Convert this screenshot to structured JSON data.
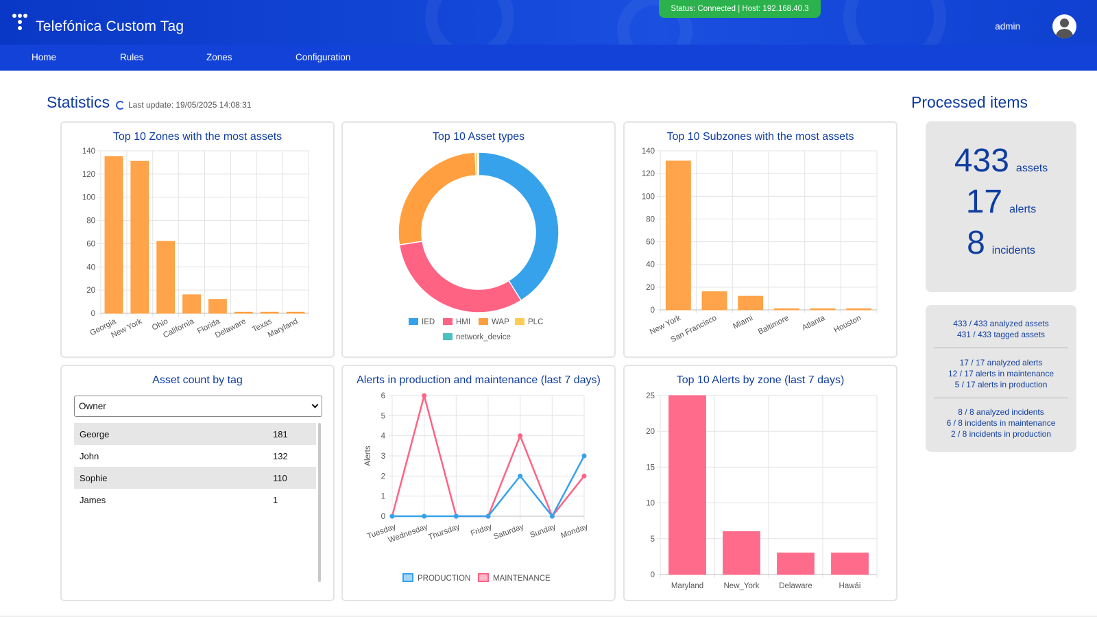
{
  "header": {
    "app_title": "Telefónica Custom Tag",
    "status": "Status: Connected | Host: 192.168.40.3",
    "user": "admin",
    "brand_color": "#1242d8",
    "status_color": "#2bb24c"
  },
  "nav": {
    "items": [
      "Home",
      "Rules",
      "Zones",
      "Configuration"
    ]
  },
  "statistics": {
    "title": "Statistics",
    "last_update": "Last update: 19/05/2025 14:08:31"
  },
  "processed": {
    "title": "Processed items",
    "assets_num": "433",
    "assets_label": "assets",
    "alerts_num": "17",
    "alerts_label": "alerts",
    "incidents_num": "8",
    "incidents_label": "incidents",
    "assets_detail": [
      "433 / 433 analyzed assets",
      "431 / 433 tagged assets"
    ],
    "alerts_detail": [
      "17 / 17 analyzed alerts",
      "12 / 17 alerts in maintenance",
      "5 / 17 alerts in production"
    ],
    "incidents_detail": [
      "8 / 8 analyzed incidents",
      "6 / 8 incidents in maintenance",
      "2 / 8 incidents in production"
    ]
  },
  "tags": {
    "title": "Asset count by tag",
    "selected": "Owner",
    "rows": [
      {
        "name": "George",
        "count": "181"
      },
      {
        "name": "John",
        "count": "132"
      },
      {
        "name": "Sophie",
        "count": "110"
      },
      {
        "name": "James",
        "count": "1"
      }
    ]
  },
  "chart_data": [
    {
      "type": "bar",
      "title": "Top 10 Zones with the most assets",
      "categories": [
        "Georgia",
        "New York",
        "Ohio",
        "California",
        "Florida",
        "Delaware",
        "Texas",
        "Maryland"
      ],
      "values": [
        135,
        131,
        62,
        16,
        12,
        1,
        1,
        1
      ],
      "ylim": [
        0,
        140
      ],
      "yticks": [
        0,
        20,
        40,
        60,
        80,
        100,
        120,
        140
      ],
      "color": "#ff9f40"
    },
    {
      "type": "pie",
      "title": "Top 10 Asset types",
      "categories": [
        "IED",
        "HMI",
        "WAP",
        "PLC",
        "network_device"
      ],
      "values": [
        178,
        136,
        116,
        2,
        1
      ],
      "colors": [
        "#36a2eb",
        "#ff6384",
        "#ff9f40",
        "#ffcd56",
        "#4bc0c0"
      ]
    },
    {
      "type": "bar",
      "title": "Top 10 Subzones with the most assets",
      "categories": [
        "New York",
        "San Francisco",
        "Miami",
        "Baltimore",
        "Atlanta",
        "Houston"
      ],
      "values": [
        131,
        16,
        12,
        1,
        1,
        1
      ],
      "ylim": [
        0,
        140
      ],
      "yticks": [
        0,
        20,
        40,
        60,
        80,
        100,
        120,
        140
      ],
      "color": "#ff9f40"
    },
    {
      "type": "line",
      "title": "Alerts in production and maintenance (last 7 days)",
      "ylabel": "Alerts",
      "categories": [
        "Tuesday",
        "Wednesday",
        "Thursday",
        "Friday",
        "Saturday",
        "Sunday",
        "Monday"
      ],
      "ylim": [
        0,
        6
      ],
      "yticks": [
        0,
        1,
        2,
        3,
        4,
        5,
        6
      ],
      "series": [
        {
          "name": "PRODUCTION",
          "values": [
            0,
            0,
            0,
            0,
            2,
            0,
            3
          ],
          "color": "#36a2eb"
        },
        {
          "name": "MAINTENANCE",
          "values": [
            0,
            6,
            0,
            0,
            4,
            0,
            2
          ],
          "color": "#ff6384"
        }
      ]
    },
    {
      "type": "bar",
      "title": "Top 10 Alerts by zone (last 7 days)",
      "categories": [
        "Maryland",
        "New_York",
        "Delaware",
        "Hawái"
      ],
      "values": [
        25,
        6,
        3,
        3
      ],
      "ylim": [
        0,
        25
      ],
      "yticks": [
        0,
        5,
        10,
        15,
        20,
        25
      ],
      "color": "#ff6384"
    }
  ]
}
